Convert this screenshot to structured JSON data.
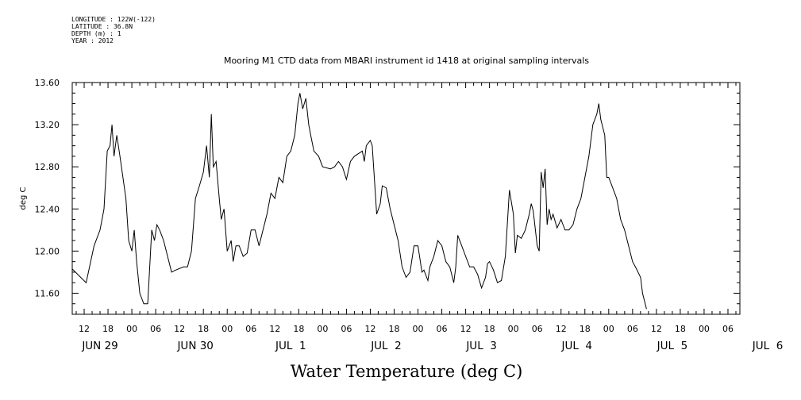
{
  "header": {
    "longitude": "LONGITUDE : 122W(-122)",
    "latitude": "LATITUDE : 36.8N",
    "depth": "DEPTH (m) : 1",
    "year": "YEAR : 2012"
  },
  "chart_data": {
    "type": "line",
    "title": "Mooring M1 CTD data from MBARI instrument id 1418 at original sampling intervals",
    "xlabel": "Water Temperature (deg C)",
    "ylabel": "deg C",
    "ylim": [
      11.4,
      13.6
    ],
    "y_ticks": [
      "11.60",
      "12.00",
      "12.40",
      "12.80",
      "13.20",
      "13.60"
    ],
    "x_hour_ticks": [
      "12",
      "18",
      "00",
      "06",
      "12",
      "18",
      "00",
      "06",
      "12",
      "18",
      "00",
      "06",
      "12",
      "18",
      "00",
      "06",
      "12",
      "18",
      "00",
      "06",
      "12",
      "18",
      "00",
      "06",
      "12",
      "18",
      "00",
      "06"
    ],
    "x_day_labels": [
      "JUN 29",
      "JUN 30",
      "JUL  1",
      "JUL  2",
      "JUL  3",
      "JUL  4",
      "JUL  5",
      "JUL  6"
    ],
    "x_day_label_hours": [
      16,
      40,
      64,
      88,
      112,
      136,
      160,
      184
    ],
    "x_range_hours": [
      9,
      177
    ],
    "series": [
      {
        "values": [
          [
            9.0,
            11.83
          ],
          [
            12.5,
            11.7
          ],
          [
            14.5,
            12.05
          ],
          [
            16.0,
            12.2
          ],
          [
            17.0,
            12.4
          ],
          [
            17.8,
            12.95
          ],
          [
            18.5,
            13.0
          ],
          [
            19.0,
            13.2
          ],
          [
            19.5,
            12.9
          ],
          [
            20.2,
            13.1
          ],
          [
            21.0,
            12.9
          ],
          [
            22.5,
            12.5
          ],
          [
            23.2,
            12.1
          ],
          [
            24.0,
            12.0
          ],
          [
            24.6,
            12.2
          ],
          [
            25.2,
            11.9
          ],
          [
            26.0,
            11.6
          ],
          [
            27.0,
            11.5
          ],
          [
            28.0,
            11.5
          ],
          [
            29.0,
            12.2
          ],
          [
            29.7,
            12.1
          ],
          [
            30.3,
            12.25
          ],
          [
            31.0,
            12.2
          ],
          [
            32.0,
            12.1
          ],
          [
            33.0,
            11.95
          ],
          [
            34.0,
            11.8
          ],
          [
            35.0,
            11.82
          ],
          [
            37.0,
            11.85
          ],
          [
            38.0,
            11.85
          ],
          [
            39.0,
            12.0
          ],
          [
            40.0,
            12.5
          ],
          [
            41.0,
            12.62
          ],
          [
            42.0,
            12.75
          ],
          [
            42.8,
            13.0
          ],
          [
            43.5,
            12.7
          ],
          [
            44.0,
            13.3
          ],
          [
            44.5,
            12.8
          ],
          [
            45.2,
            12.85
          ],
          [
            46.0,
            12.5
          ],
          [
            46.5,
            12.3
          ],
          [
            47.2,
            12.4
          ],
          [
            48.0,
            12.0
          ],
          [
            49.0,
            12.1
          ],
          [
            49.5,
            11.9
          ],
          [
            50.2,
            12.05
          ],
          [
            51.0,
            12.05
          ],
          [
            52.0,
            11.95
          ],
          [
            53.0,
            11.98
          ],
          [
            54.0,
            12.2
          ],
          [
            55.0,
            12.2
          ],
          [
            56.0,
            12.05
          ],
          [
            57.0,
            12.2
          ],
          [
            58.0,
            12.35
          ],
          [
            59.0,
            12.55
          ],
          [
            60.0,
            12.5
          ],
          [
            61.0,
            12.7
          ],
          [
            62.0,
            12.65
          ],
          [
            63.0,
            12.9
          ],
          [
            64.0,
            12.95
          ],
          [
            65.0,
            13.1
          ],
          [
            65.8,
            13.4
          ],
          [
            66.3,
            13.5
          ],
          [
            67.0,
            13.35
          ],
          [
            67.8,
            13.45
          ],
          [
            68.5,
            13.2
          ],
          [
            69.0,
            13.1
          ],
          [
            69.8,
            12.95
          ],
          [
            71.0,
            12.9
          ],
          [
            72.0,
            12.8
          ],
          [
            74.0,
            12.78
          ],
          [
            75.0,
            12.8
          ],
          [
            76.0,
            12.85
          ],
          [
            77.0,
            12.8
          ],
          [
            78.0,
            12.68
          ],
          [
            79.0,
            12.85
          ],
          [
            80.0,
            12.9
          ],
          [
            82.0,
            12.95
          ],
          [
            82.5,
            12.85
          ],
          [
            83.0,
            13.0
          ],
          [
            84.0,
            13.05
          ],
          [
            84.5,
            13.0
          ],
          [
            85.0,
            12.7
          ],
          [
            85.6,
            12.35
          ],
          [
            86.5,
            12.45
          ],
          [
            87.0,
            12.62
          ],
          [
            88.0,
            12.6
          ],
          [
            89.0,
            12.4
          ],
          [
            90.0,
            12.25
          ],
          [
            91.0,
            12.1
          ],
          [
            92.0,
            11.85
          ],
          [
            93.0,
            11.75
          ],
          [
            94.0,
            11.8
          ],
          [
            95.0,
            12.05
          ],
          [
            96.0,
            12.05
          ],
          [
            97.0,
            11.8
          ],
          [
            97.5,
            11.82
          ],
          [
            98.5,
            11.72
          ],
          [
            99.0,
            11.85
          ],
          [
            100.0,
            11.95
          ],
          [
            101.0,
            12.1
          ],
          [
            102.0,
            12.05
          ],
          [
            103.0,
            11.9
          ],
          [
            104.0,
            11.85
          ],
          [
            105.0,
            11.7
          ],
          [
            105.5,
            11.85
          ],
          [
            106.0,
            12.15
          ],
          [
            107.0,
            12.05
          ],
          [
            108.0,
            11.95
          ],
          [
            109.0,
            11.85
          ],
          [
            110.0,
            11.85
          ],
          [
            111.0,
            11.78
          ],
          [
            112.0,
            11.65
          ],
          [
            113.0,
            11.75
          ],
          [
            113.5,
            11.88
          ],
          [
            114.0,
            11.9
          ],
          [
            115.0,
            11.82
          ],
          [
            116.0,
            11.7
          ],
          [
            117.0,
            11.72
          ],
          [
            118.0,
            11.95
          ],
          [
            119.0,
            12.58
          ],
          [
            120.0,
            12.35
          ],
          [
            120.5,
            11.98
          ],
          [
            121.0,
            12.15
          ],
          [
            122.0,
            12.12
          ],
          [
            123.0,
            12.2
          ],
          [
            124.0,
            12.35
          ],
          [
            124.5,
            12.45
          ],
          [
            125.0,
            12.38
          ],
          [
            126.0,
            12.05
          ],
          [
            126.5,
            12.0
          ],
          [
            127.0,
            12.75
          ],
          [
            127.5,
            12.6
          ],
          [
            128.0,
            12.78
          ],
          [
            128.5,
            12.25
          ],
          [
            129.0,
            12.4
          ],
          [
            129.5,
            12.3
          ],
          [
            130.0,
            12.35
          ],
          [
            131.0,
            12.22
          ],
          [
            132.0,
            12.3
          ],
          [
            133.0,
            12.2
          ],
          [
            134.0,
            12.2
          ],
          [
            135.0,
            12.25
          ],
          [
            136.0,
            12.4
          ],
          [
            137.0,
            12.5
          ],
          [
            138.0,
            12.7
          ],
          [
            139.0,
            12.9
          ],
          [
            140.0,
            13.2
          ],
          [
            141.0,
            13.3
          ],
          [
            141.5,
            13.4
          ],
          [
            142.0,
            13.25
          ],
          [
            143.0,
            13.1
          ],
          [
            143.5,
            12.7
          ],
          [
            144.0,
            12.7
          ],
          [
            145.0,
            12.6
          ],
          [
            146.0,
            12.5
          ],
          [
            147.0,
            12.3
          ],
          [
            148.0,
            12.2
          ],
          [
            149.0,
            12.05
          ],
          [
            150.0,
            11.9
          ],
          [
            151.0,
            11.83
          ],
          [
            152.0,
            11.75
          ],
          [
            152.5,
            11.6
          ],
          [
            153.5,
            11.45
          ]
        ]
      }
    ]
  }
}
